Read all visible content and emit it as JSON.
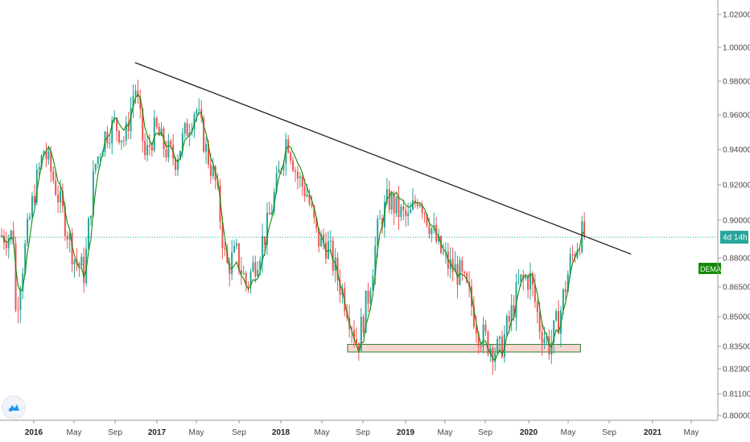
{
  "chart_data": {
    "type": "candlestick",
    "timeframe": "weekly",
    "y_axis": {
      "ticks": [
        {
          "value": 1.02,
          "label": "1.02000"
        },
        {
          "value": 1.0,
          "label": "1.00000"
        },
        {
          "value": 0.98,
          "label": "0.98000"
        },
        {
          "value": 0.96,
          "label": "0.96000"
        },
        {
          "value": 0.94,
          "label": "0.94000"
        },
        {
          "value": 0.92,
          "label": "0.92000"
        },
        {
          "value": 0.9,
          "label": "0.90000"
        },
        {
          "value": 0.88,
          "label": "0.88000"
        },
        {
          "value": 0.865,
          "label": "0.86500"
        },
        {
          "value": 0.85,
          "label": "0.85000"
        },
        {
          "value": 0.835,
          "label": "0.83500"
        },
        {
          "value": 0.823,
          "label": "0.82300"
        },
        {
          "value": 0.811,
          "label": "0.81100"
        },
        {
          "value": 0.8,
          "label": "0.80000"
        }
      ],
      "scale": "non-linear"
    },
    "x_axis": {
      "ticks": [
        {
          "label": "2016",
          "year": true
        },
        {
          "label": "May",
          "year": false
        },
        {
          "label": "Sep",
          "year": false
        },
        {
          "label": "2017",
          "year": true
        },
        {
          "label": "May",
          "year": false
        },
        {
          "label": "Sep",
          "year": false
        },
        {
          "label": "2018",
          "year": true
        },
        {
          "label": "May",
          "year": false
        },
        {
          "label": "Sep",
          "year": false
        },
        {
          "label": "2019",
          "year": true
        },
        {
          "label": "May",
          "year": false
        },
        {
          "label": "Sep",
          "year": false
        },
        {
          "label": "2020",
          "year": true
        },
        {
          "label": "May",
          "year": false
        },
        {
          "label": "Sep",
          "year": false
        },
        {
          "label": "2021",
          "year": true
        },
        {
          "label": "May",
          "year": false
        }
      ]
    },
    "price_line": {
      "value": 0.891,
      "label": "4d 14h",
      "color": "#26a69a"
    },
    "indicator": {
      "label": "DEMA",
      "color": "#138a07"
    },
    "trendline": {
      "start": {
        "date": "2016-11",
        "value": 0.991
      },
      "end": {
        "date": "2020-12",
        "value": 0.882
      },
      "color": "#222222"
    },
    "support_zone": {
      "from": "2018-08",
      "to": "2020-07",
      "low": 0.832,
      "high": 0.836,
      "fill": "#f8d7d0",
      "stroke": "#2e7d32"
    },
    "colors": {
      "up": "#26a69a",
      "down": "#ef5350",
      "grid": "#e6e6e6"
    },
    "grid": false
  }
}
